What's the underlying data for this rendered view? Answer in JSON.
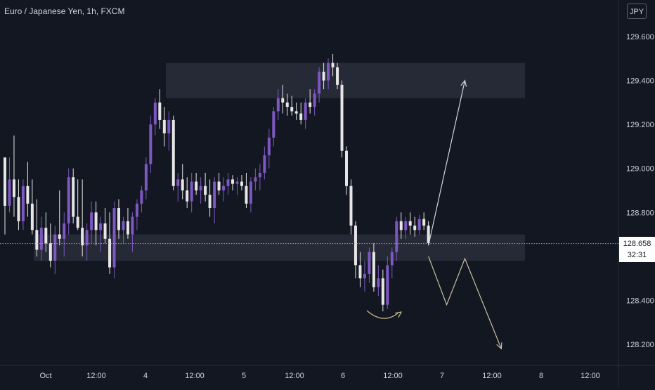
{
  "header": {
    "title": "Euro / Japanese Yen, 1h, FXCM"
  },
  "currency_button": "JPY",
  "last_price": {
    "value": "128.658",
    "countdown": "32:31"
  },
  "colors": {
    "background": "#131722",
    "bull": "#7e57c2",
    "bear": "#e6e6e6",
    "zone": "#2a2e39",
    "up_arrow": "#d1d4dc",
    "down_arrow": "#c9c0a0",
    "curve": "#c9b98a",
    "axis_text": "#d1d4dc"
  },
  "chart_data": {
    "type": "candlestick",
    "symbol": "Euro / Japanese Yen",
    "timeframe": "1h",
    "source": "FXCM",
    "ylim": [
      128.06,
      129.72
    ],
    "y_ticks": [
      129.6,
      129.4,
      129.2,
      129.0,
      128.8,
      128.4,
      128.2
    ],
    "x_ticks": [
      "Oct",
      "12:00",
      "4",
      "12:00",
      "5",
      "12:00",
      "6",
      "12:00",
      "7",
      "12:00",
      "8",
      "12:00"
    ],
    "last_price": 128.658,
    "candles": [
      [
        129.05,
        129.05,
        128.7,
        128.83
      ],
      [
        128.83,
        129.05,
        128.8,
        128.95
      ],
      [
        128.95,
        129.15,
        128.78,
        128.87
      ],
      [
        128.87,
        128.95,
        128.72,
        128.76
      ],
      [
        128.76,
        128.95,
        128.72,
        128.92
      ],
      [
        128.92,
        129.03,
        128.78,
        128.84
      ],
      [
        128.84,
        128.95,
        128.7,
        128.72
      ],
      [
        128.72,
        128.86,
        128.6,
        128.63
      ],
      [
        128.63,
        128.78,
        128.58,
        128.73
      ],
      [
        128.73,
        128.8,
        128.62,
        128.66
      ],
      [
        128.66,
        128.75,
        128.55,
        128.58
      ],
      [
        128.58,
        128.74,
        128.52,
        128.7
      ],
      [
        128.7,
        128.9,
        128.65,
        128.68
      ],
      [
        128.68,
        128.8,
        128.6,
        128.75
      ],
      [
        128.75,
        129.0,
        128.7,
        128.96
      ],
      [
        128.96,
        129.0,
        128.75,
        128.78
      ],
      [
        128.78,
        128.95,
        128.72,
        128.73
      ],
      [
        128.73,
        128.95,
        128.6,
        128.65
      ],
      [
        128.65,
        128.75,
        128.58,
        128.72
      ],
      [
        128.72,
        128.85,
        128.66,
        128.8
      ],
      [
        128.8,
        128.85,
        128.65,
        128.72
      ],
      [
        128.72,
        128.78,
        128.62,
        128.75
      ],
      [
        128.75,
        128.82,
        128.66,
        128.68
      ],
      [
        128.68,
        128.8,
        128.52,
        128.55
      ],
      [
        128.55,
        128.85,
        128.5,
        128.82
      ],
      [
        128.82,
        128.86,
        128.68,
        128.72
      ],
      [
        128.72,
        128.78,
        128.66,
        128.76
      ],
      [
        128.76,
        128.82,
        128.68,
        128.7
      ],
      [
        128.7,
        128.8,
        128.62,
        128.78
      ],
      [
        128.78,
        128.86,
        128.72,
        128.84
      ],
      [
        128.84,
        128.92,
        128.8,
        128.9
      ],
      [
        128.9,
        129.05,
        128.86,
        129.02
      ],
      [
        129.02,
        129.24,
        128.98,
        129.2
      ],
      [
        129.2,
        129.32,
        129.15,
        129.3
      ],
      [
        129.3,
        129.36,
        129.18,
        129.22
      ],
      [
        129.22,
        129.28,
        129.1,
        129.16
      ],
      [
        129.16,
        129.26,
        129.08,
        129.22
      ],
      [
        129.22,
        129.24,
        128.9,
        128.92
      ],
      [
        128.92,
        128.98,
        128.85,
        128.95
      ],
      [
        128.95,
        129.02,
        128.86,
        128.9
      ],
      [
        128.9,
        128.96,
        128.82,
        128.85
      ],
      [
        128.85,
        128.98,
        128.8,
        128.94
      ],
      [
        128.94,
        128.98,
        128.88,
        128.9
      ],
      [
        128.9,
        128.96,
        128.84,
        128.92
      ],
      [
        128.92,
        128.98,
        128.85,
        128.88
      ],
      [
        128.88,
        128.95,
        128.78,
        128.82
      ],
      [
        128.82,
        128.96,
        128.75,
        128.94
      ],
      [
        128.94,
        128.98,
        128.88,
        128.9
      ],
      [
        128.9,
        128.96,
        128.85,
        128.92
      ],
      [
        128.92,
        128.98,
        128.88,
        128.95
      ],
      [
        128.95,
        128.97,
        128.9,
        128.93
      ],
      [
        128.93,
        128.96,
        128.88,
        128.94
      ],
      [
        128.94,
        128.97,
        128.9,
        128.92
      ],
      [
        128.92,
        128.98,
        128.82,
        128.84
      ],
      [
        128.84,
        128.96,
        128.8,
        128.94
      ],
      [
        128.94,
        129.0,
        128.9,
        128.96
      ],
      [
        128.96,
        129.02,
        128.9,
        128.98
      ],
      [
        128.98,
        129.1,
        128.95,
        129.06
      ],
      [
        129.06,
        129.18,
        129.0,
        129.14
      ],
      [
        129.14,
        129.28,
        129.1,
        129.26
      ],
      [
        129.26,
        129.36,
        129.22,
        129.32
      ],
      [
        129.32,
        129.38,
        129.25,
        129.3
      ],
      [
        129.3,
        129.34,
        129.24,
        129.28
      ],
      [
        129.28,
        129.33,
        129.24,
        129.26
      ],
      [
        129.26,
        129.3,
        129.22,
        129.25
      ],
      [
        129.25,
        129.3,
        129.2,
        129.22
      ],
      [
        129.22,
        129.32,
        129.18,
        129.3
      ],
      [
        129.3,
        129.36,
        129.25,
        129.28
      ],
      [
        129.28,
        129.36,
        129.24,
        129.34
      ],
      [
        129.34,
        129.46,
        129.3,
        129.44
      ],
      [
        129.44,
        129.48,
        129.36,
        129.4
      ],
      [
        129.4,
        129.5,
        129.36,
        129.48
      ],
      [
        129.48,
        129.52,
        129.42,
        129.46
      ],
      [
        129.46,
        129.48,
        129.36,
        129.38
      ],
      [
        129.38,
        129.4,
        129.05,
        129.08
      ],
      [
        129.08,
        129.1,
        128.88,
        128.92
      ],
      [
        128.92,
        128.95,
        128.7,
        128.74
      ],
      [
        128.74,
        128.76,
        128.5,
        128.56
      ],
      [
        128.56,
        128.62,
        128.46,
        128.5
      ],
      [
        128.5,
        128.58,
        128.44,
        128.52
      ],
      [
        128.52,
        128.64,
        128.48,
        128.62
      ],
      [
        128.62,
        128.66,
        128.44,
        128.46
      ],
      [
        128.46,
        128.56,
        128.42,
        128.5
      ],
      [
        128.5,
        128.54,
        128.35,
        128.38
      ],
      [
        128.38,
        128.6,
        128.36,
        128.56
      ],
      [
        128.56,
        128.64,
        128.5,
        128.62
      ],
      [
        128.62,
        128.78,
        128.58,
        128.76
      ],
      [
        128.76,
        128.8,
        128.68,
        128.72
      ],
      [
        128.72,
        128.78,
        128.68,
        128.76
      ],
      [
        128.76,
        128.8,
        128.7,
        128.74
      ],
      [
        128.74,
        128.78,
        128.69,
        128.72
      ],
      [
        128.72,
        128.79,
        128.7,
        128.77
      ],
      [
        128.77,
        128.8,
        128.72,
        128.74
      ],
      [
        128.74,
        128.76,
        128.65,
        128.66
      ]
    ],
    "zones": [
      {
        "from": 129.32,
        "to": 129.48
      },
      {
        "from": 128.58,
        "to": 128.7
      }
    ],
    "projections": [
      {
        "style": "arrow",
        "points": [
          [
            128.65,
            93
          ],
          [
            129.4,
            101
          ]
        ]
      },
      {
        "style": "arrow",
        "points": [
          [
            128.6,
            93
          ],
          [
            128.38,
            97
          ],
          [
            128.59,
            101
          ],
          [
            128.18,
            109
          ]
        ]
      }
    ]
  }
}
